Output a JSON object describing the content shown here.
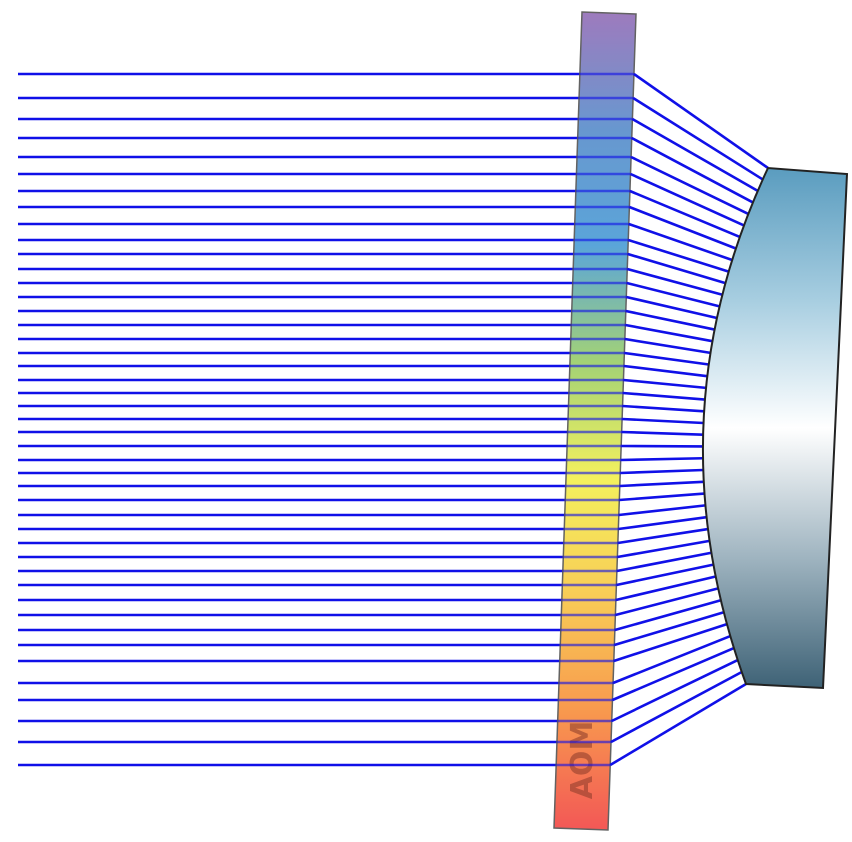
{
  "diagram": {
    "logo_text": "AOM",
    "colors": {
      "ray": "#1010e8",
      "plate_gradient": [
        "#9670b8",
        "#5c8fcc",
        "#4d9ed6",
        "#9ccf6a",
        "#f4f050",
        "#f8c848",
        "#f89040",
        "#f24a48"
      ],
      "lens_gradient": [
        "#5a9cbf",
        "#a6cde0",
        "#ffffff",
        "#9fb4c0",
        "#3e6276"
      ],
      "outline": "#333333"
    }
  }
}
